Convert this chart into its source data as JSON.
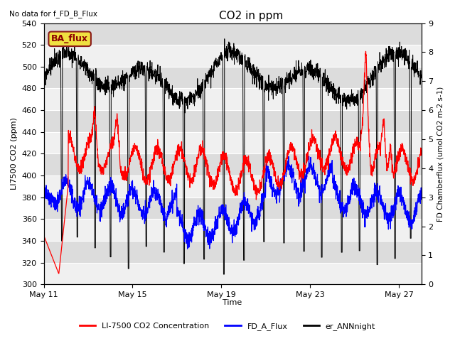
{
  "title": "CO2 in ppm",
  "no_data_text": "No data for f_FD_B_Flux",
  "annotation_text": "BA_flux",
  "xlabel": "Time",
  "ylabel_left": "LI7500 CO2 (ppm)",
  "ylabel_right": "FD Chamberflux (umol CO2 m-2 s-1)",
  "ylim_left": [
    300,
    540
  ],
  "ylim_right": [
    0.0,
    9.0
  ],
  "yticks_left": [
    300,
    320,
    340,
    360,
    380,
    400,
    420,
    440,
    460,
    480,
    500,
    520,
    540
  ],
  "yticks_right": [
    0.0,
    1.0,
    2.0,
    3.0,
    4.0,
    5.0,
    6.0,
    7.0,
    8.0,
    9.0
  ],
  "xtick_labels": [
    "May 11",
    "May 15",
    "May 19",
    "May 23",
    "May 27"
  ],
  "xtick_positions": [
    0,
    4,
    8,
    12,
    16
  ],
  "legend_labels": [
    "LI-7500 CO2 Concentration",
    "FD_A_Flux",
    "er_ANNnight"
  ],
  "line_colors": [
    "red",
    "blue",
    "black"
  ],
  "bg_band_color": "#dcdcdc",
  "bg_color": "#f0f0f0",
  "annotation_bg": "#f0e040",
  "annotation_border": "#8b1a1a",
  "figsize": [
    6.4,
    4.8
  ],
  "dpi": 100
}
